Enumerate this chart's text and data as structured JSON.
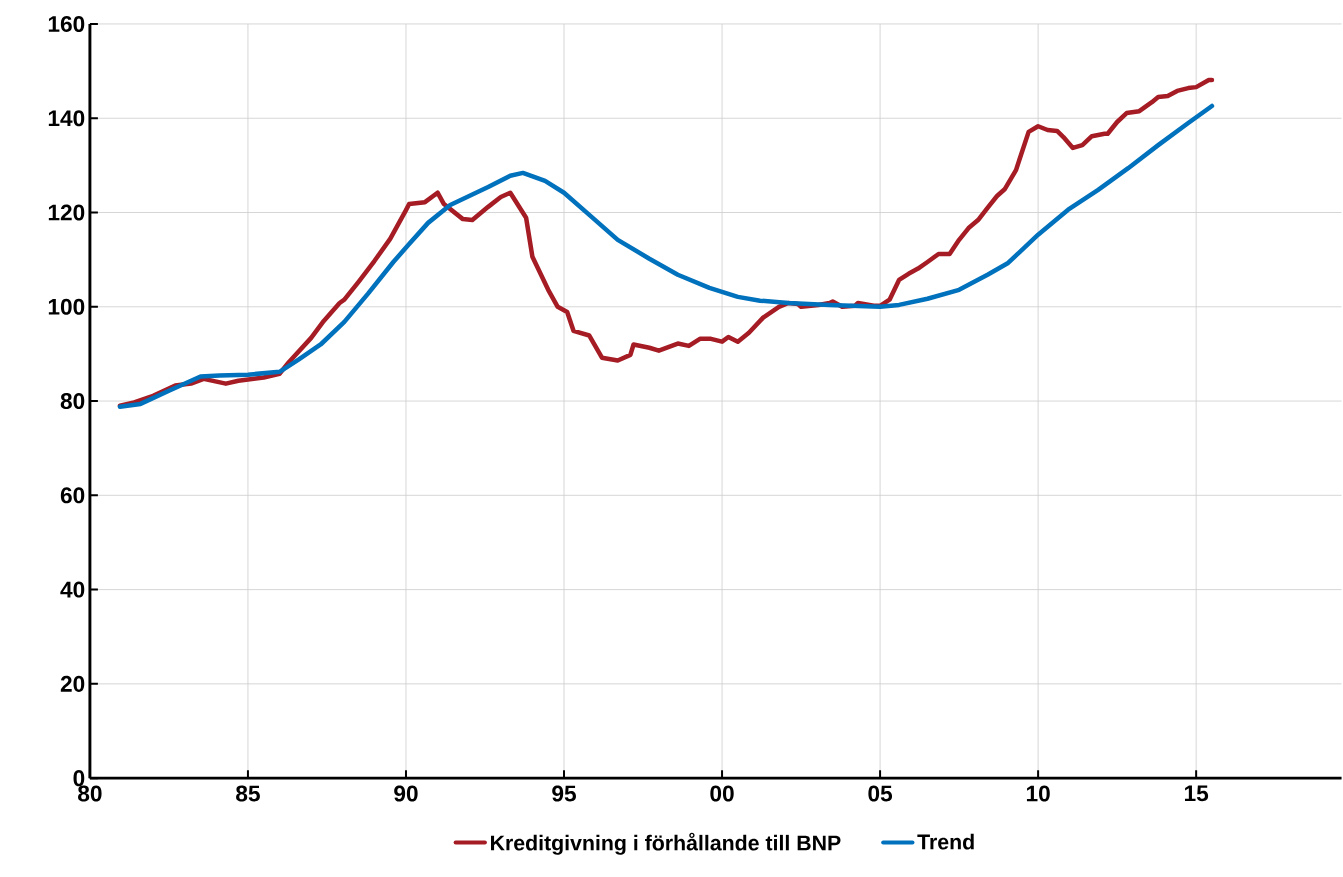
{
  "chart_data": {
    "type": "line",
    "xlim": [
      1980,
      2019.6
    ],
    "ylim": [
      0,
      160
    ],
    "xticks": [
      {
        "value": 1980,
        "label": "80"
      },
      {
        "value": 1985,
        "label": "85"
      },
      {
        "value": 1990,
        "label": "90"
      },
      {
        "value": 1995,
        "label": "95"
      },
      {
        "value": 2000,
        "label": "00"
      },
      {
        "value": 2005,
        "label": "05"
      },
      {
        "value": 2010,
        "label": "10"
      },
      {
        "value": 2015,
        "label": "15"
      }
    ],
    "yticks": [
      0,
      20,
      40,
      60,
      80,
      100,
      120,
      140,
      160
    ],
    "grid": true,
    "legend": "bottom",
    "line_style": "solid",
    "marker": "none",
    "series": [
      {
        "name": "Kreditgivning i förhållande till BNP",
        "color": "#a51c24",
        "x": [
          1980.95,
          1981.4,
          1982.0,
          1982.7,
          1983.2,
          1983.6,
          1984.3,
          1984.7,
          1985.5,
          1986.0,
          1986.3,
          1987.0,
          1987.4,
          1987.9,
          1988.05,
          1988.5,
          1989.0,
          1989.5,
          1990.0,
          1990.1,
          1990.6,
          1991.0,
          1991.2,
          1991.8,
          1992.1,
          1992.6,
          1993.0,
          1993.3,
          1993.8,
          1994.0,
          1994.5,
          1994.8,
          1995.1,
          1995.3,
          1995.8,
          1996.2,
          1996.7,
          1997.1,
          1997.2,
          1997.7,
          1998.0,
          1998.6,
          1998.95,
          1999.3,
          1999.65,
          2000.0,
          2000.2,
          2000.5,
          2000.85,
          2001.3,
          2001.8,
          2002.1,
          2002.4,
          2002.5,
          2003.05,
          2003.4,
          2003.5,
          2003.8,
          2004.2,
          2004.3,
          2004.8,
          2005.0,
          2005.3,
          2005.6,
          2005.9,
          2006.2,
          2006.5,
          2006.85,
          2007.2,
          2007.5,
          2007.8,
          2008.1,
          2008.4,
          2008.7,
          2008.95,
          2009.3,
          2009.7,
          2010.0,
          2010.3,
          2010.6,
          2010.8,
          2011.1,
          2011.4,
          2011.7,
          2012.1,
          2012.2,
          2012.5,
          2012.8,
          2013.2,
          2013.6,
          2013.8,
          2014.1,
          2014.4,
          2014.75,
          2015.0,
          2015.4,
          2015.5
        ],
        "values": [
          79.0,
          79.7,
          81.1,
          83.3,
          83.7,
          84.7,
          83.7,
          84.3,
          85.0,
          85.8,
          88.3,
          93.4,
          97.0,
          100.8,
          101.5,
          105.3,
          109.7,
          114.4,
          120.5,
          121.8,
          122.2,
          124.2,
          121.8,
          118.6,
          118.4,
          121.2,
          123.3,
          124.2,
          118.9,
          110.6,
          103.6,
          100.0,
          98.9,
          94.9,
          93.9,
          89.2,
          88.6,
          89.8,
          92.0,
          91.3,
          90.7,
          92.2,
          91.7,
          93.2,
          93.2,
          92.6,
          93.6,
          92.6,
          94.5,
          97.7,
          100.0,
          100.8,
          100.6,
          100.0,
          100.4,
          100.8,
          101.1,
          100.0,
          100.2,
          100.8,
          100.2,
          100.2,
          101.5,
          105.7,
          107.0,
          108.1,
          109.5,
          111.2,
          111.2,
          114.2,
          116.7,
          118.4,
          121.0,
          123.5,
          125.0,
          129.0,
          137.1,
          138.3,
          137.5,
          137.3,
          136.0,
          133.7,
          134.3,
          136.2,
          136.7,
          136.7,
          139.2,
          141.1,
          141.5,
          143.4,
          144.5,
          144.7,
          145.8,
          146.4,
          146.6,
          148.1,
          148.1
        ]
      },
      {
        "name": "Trend",
        "color": "#0071bc",
        "x": [
          1980.95,
          1981.6,
          1982.5,
          1983.5,
          1984.1,
          1985.0,
          1986.0,
          1986.6,
          1987.3,
          1988.05,
          1988.8,
          1989.6,
          1990.1,
          1990.7,
          1991.4,
          1992.0,
          1992.6,
          1993.3,
          1993.7,
          1994.4,
          1995.0,
          1995.8,
          1996.7,
          1997.7,
          1998.6,
          1999.6,
          2000.5,
          2001.2,
          2002.1,
          2003.4,
          2005.0,
          2005.6,
          2006.5,
          2007.5,
          2008.4,
          2009.05,
          2010.0,
          2010.95,
          2011.9,
          2012.85,
          2013.8,
          2014.75,
          2015.5
        ],
        "values": [
          78.8,
          79.4,
          82.2,
          85.2,
          85.4,
          85.6,
          86.2,
          88.8,
          92.0,
          96.8,
          102.8,
          109.5,
          113.3,
          117.8,
          121.6,
          123.5,
          125.4,
          127.8,
          128.4,
          126.7,
          124.2,
          119.5,
          114.2,
          110.2,
          106.8,
          104.0,
          102.1,
          101.3,
          100.8,
          100.4,
          100.0,
          100.4,
          101.7,
          103.6,
          106.8,
          109.3,
          115.3,
          120.6,
          124.8,
          129.4,
          134.3,
          139.0,
          142.6
        ]
      }
    ]
  }
}
